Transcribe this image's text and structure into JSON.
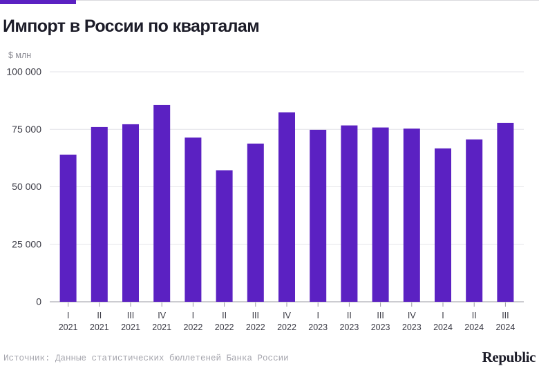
{
  "title": "Импорт в России по кварталам",
  "source": "Источник: Данные статистических бюллетеней Банка России",
  "logo": "Republic",
  "colors": {
    "bar": "#5b21c2",
    "accent": "#5b21c2",
    "grid": "#e3e3e8",
    "text": "#1c1c28"
  },
  "chart_data": {
    "type": "bar",
    "unit_label": "$ млн",
    "ylim": [
      0,
      100000
    ],
    "yticks": [
      0,
      25000,
      50000,
      75000,
      100000
    ],
    "ytick_labels": [
      "0",
      "25 000",
      "50 000",
      "75 000",
      "100 000"
    ],
    "grid": true,
    "categories": [
      [
        "I",
        "2021"
      ],
      [
        "II",
        "2021"
      ],
      [
        "III",
        "2021"
      ],
      [
        "IV",
        "2021"
      ],
      [
        "I",
        "2022"
      ],
      [
        "II",
        "2022"
      ],
      [
        "III",
        "2022"
      ],
      [
        "IV",
        "2022"
      ],
      [
        "I",
        "2023"
      ],
      [
        "II",
        "2023"
      ],
      [
        "III",
        "2023"
      ],
      [
        "IV",
        "2023"
      ],
      [
        "I",
        "2024"
      ],
      [
        "II",
        "2024"
      ],
      [
        "III",
        "2024"
      ]
    ],
    "values": [
      64000,
      76000,
      77200,
      85600,
      71400,
      57200,
      68800,
      82400,
      74800,
      76700,
      75800,
      75300,
      66700,
      70600,
      77800
    ]
  }
}
